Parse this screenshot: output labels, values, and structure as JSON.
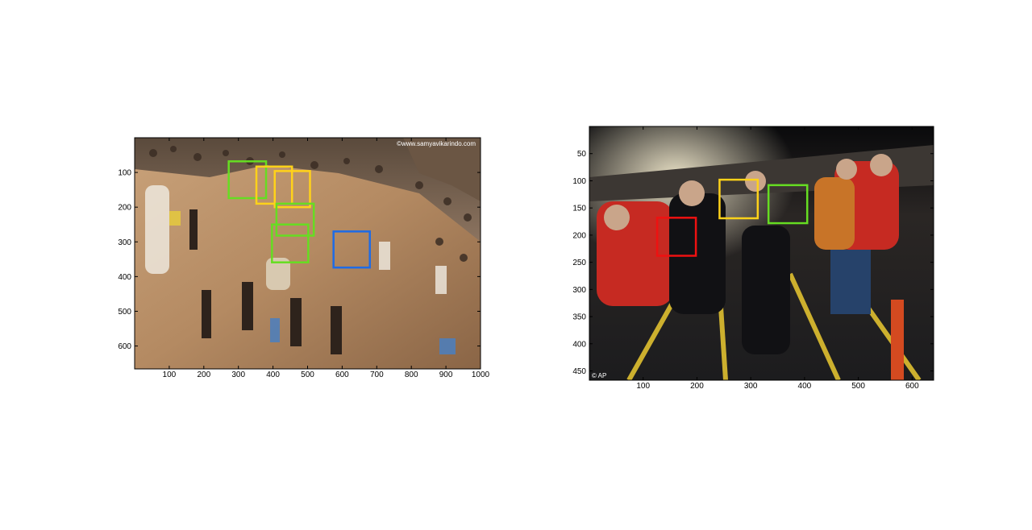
{
  "panels": [
    {
      "id": "left",
      "image_size": [
        1000,
        666
      ],
      "xticks": [
        100,
        200,
        300,
        400,
        500,
        600,
        700,
        800,
        900,
        1000
      ],
      "yticks": [
        100,
        200,
        300,
        400,
        500,
        600
      ],
      "watermark": "©www.samyavikarindo.com",
      "boxes": [
        {
          "color": "#66dd22",
          "x1": 272,
          "y1": 68,
          "x2": 380,
          "y2": 174
        },
        {
          "color": "#ffd21a",
          "x1": 352,
          "y1": 83,
          "x2": 455,
          "y2": 190
        },
        {
          "color": "#ffd21a",
          "x1": 405,
          "y1": 96,
          "x2": 507,
          "y2": 200
        },
        {
          "color": "#66dd22",
          "x1": 410,
          "y1": 190,
          "x2": 518,
          "y2": 282
        },
        {
          "color": "#66dd22",
          "x1": 397,
          "y1": 250,
          "x2": 502,
          "y2": 359
        },
        {
          "color": "#1e6be6",
          "x1": 575,
          "y1": 270,
          "x2": 680,
          "y2": 374
        }
      ]
    },
    {
      "id": "right",
      "image_size": [
        640,
        467
      ],
      "xticks": [
        100,
        200,
        300,
        400,
        500,
        600
      ],
      "yticks": [
        50,
        100,
        150,
        200,
        250,
        300,
        350,
        400,
        450
      ],
      "watermark": "© AP",
      "boxes": [
        {
          "color": "#ffd21a",
          "x1": 242,
          "y1": 98,
          "x2": 313,
          "y2": 169
        },
        {
          "color": "#66dd22",
          "x1": 333,
          "y1": 108,
          "x2": 405,
          "y2": 178
        },
        {
          "color": "#ee1111",
          "x1": 126,
          "y1": 168,
          "x2": 198,
          "y2": 238
        }
      ]
    }
  ],
  "colors": {
    "axes": "#000000",
    "background": "#ffffff"
  }
}
